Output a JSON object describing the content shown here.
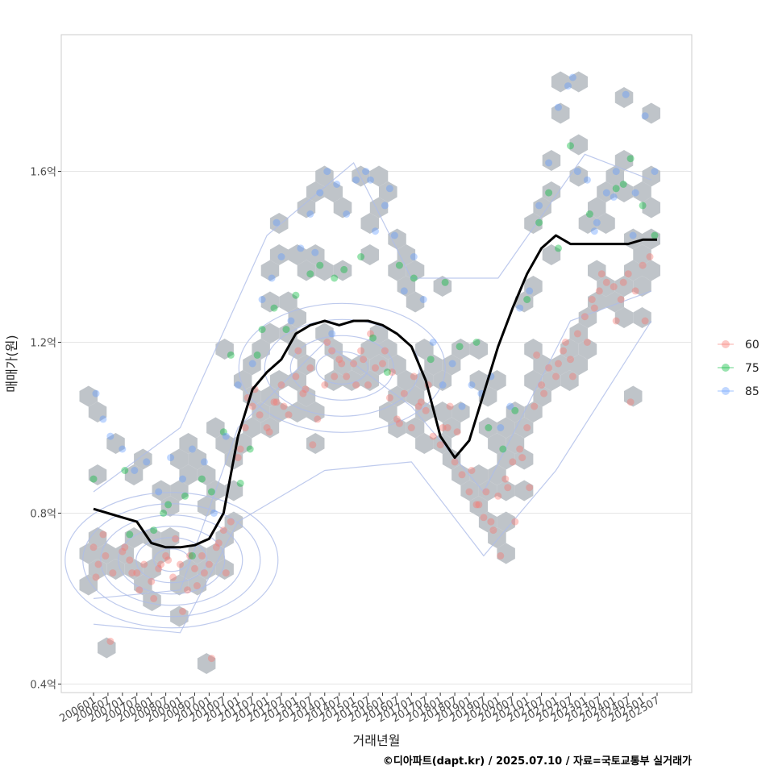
{
  "chart_data": {
    "type": "scatter",
    "title": "",
    "xlabel": "거래년월",
    "ylabel": "매매가(원)",
    "caption": "©디아파트(dapt.kr) / 2025.07.10 / 자료=국토교통부 실거래가",
    "x_ticks": [
      "200601",
      "200607",
      "200701",
      "200707",
      "200801",
      "200807",
      "200901",
      "200907",
      "201001",
      "201007",
      "201101",
      "201107",
      "201201",
      "201207",
      "201301",
      "201307",
      "201401",
      "201407",
      "201501",
      "201507",
      "201601",
      "201607",
      "201701",
      "201707",
      "201801",
      "201807",
      "201901",
      "201907",
      "202001",
      "202007",
      "202101",
      "202107",
      "202201",
      "202207",
      "202301",
      "202307",
      "202401",
      "202407",
      "202501",
      "202507"
    ],
    "y_ticks": [
      0.4,
      0.8,
      1.2,
      1.6
    ],
    "y_tick_labels": [
      "0.4억",
      "0.8억",
      "1.2억",
      "1.6억"
    ],
    "ylim": [
      0.38,
      1.92
    ],
    "grid": "horizontal",
    "legend_position": "right",
    "legend": [
      {
        "label": "60",
        "color": "#F8766D"
      },
      {
        "label": "75",
        "color": "#00BA38"
      },
      {
        "label": "85",
        "color": "#619CFF"
      }
    ],
    "hex_color": "#bfc4c9",
    "trend_line": {
      "color": "#000000",
      "x": [
        "2006-01",
        "2006-07",
        "2007-01",
        "2007-07",
        "2008-01",
        "2008-07",
        "2009-01",
        "2009-07",
        "2010-01",
        "2010-07",
        "2011-01",
        "2011-07",
        "2012-01",
        "2012-07",
        "2013-01",
        "2013-07",
        "2014-01",
        "2014-07",
        "2015-01",
        "2015-07",
        "2016-01",
        "2016-07",
        "2017-01",
        "2017-07",
        "2018-01",
        "2018-07",
        "2019-01",
        "2019-07",
        "2020-01",
        "2020-07",
        "2021-01",
        "2021-07",
        "2022-01",
        "2022-07",
        "2023-01",
        "2023-07",
        "2024-01",
        "2024-07",
        "2025-01",
        "2025-07"
      ],
      "y": [
        0.81,
        0.8,
        0.79,
        0.78,
        0.73,
        0.72,
        0.72,
        0.725,
        0.74,
        0.8,
        0.98,
        1.09,
        1.13,
        1.16,
        1.22,
        1.24,
        1.25,
        1.24,
        1.25,
        1.25,
        1.24,
        1.22,
        1.19,
        1.11,
        0.98,
        0.93,
        0.97,
        1.08,
        1.19,
        1.28,
        1.36,
        1.42,
        1.45,
        1.43,
        1.43,
        1.43,
        1.43,
        1.43,
        1.44,
        1.44
      ]
    },
    "series": [
      {
        "name": "60",
        "x": [
          "2006-01",
          "2006-03",
          "2006-06",
          "2006-09",
          "2007-01",
          "2007-04",
          "2007-07",
          "2007-10",
          "2008-01",
          "2008-04",
          "2008-07",
          "2008-10",
          "2009-01",
          "2009-04",
          "2009-07",
          "2009-10",
          "2010-01",
          "2010-04",
          "2010-07",
          "2010-10",
          "2011-01",
          "2011-04",
          "2011-07",
          "2011-10",
          "2012-01",
          "2012-04",
          "2012-07",
          "2012-10",
          "2013-01",
          "2013-04",
          "2013-07",
          "2013-10",
          "2014-01",
          "2014-04",
          "2014-07",
          "2014-10",
          "2015-01",
          "2015-04",
          "2015-07",
          "2015-10",
          "2016-01",
          "2016-04",
          "2016-07",
          "2016-10",
          "2017-01",
          "2017-04",
          "2017-07",
          "2017-10",
          "2018-01",
          "2018-04",
          "2018-07",
          "2018-10",
          "2019-01",
          "2019-04",
          "2019-07",
          "2019-10",
          "2020-01",
          "2020-04",
          "2020-07",
          "2020-10",
          "2021-01",
          "2021-04",
          "2021-07",
          "2021-10",
          "2022-01",
          "2022-04",
          "2022-07",
          "2022-10",
          "2023-01",
          "2023-04",
          "2023-07",
          "2023-10",
          "2024-01",
          "2024-04",
          "2024-07",
          "2024-10",
          "2025-01",
          "2025-04",
          "2006-02",
          "2006-08",
          "2007-02",
          "2007-08",
          "2008-02",
          "2008-08",
          "2009-02",
          "2009-08",
          "2010-02",
          "2010-08",
          "2011-02",
          "2011-08",
          "2012-02",
          "2012-08",
          "2013-02",
          "2013-08",
          "2014-02",
          "2014-08",
          "2015-02",
          "2015-08",
          "2016-02",
          "2016-08",
          "2017-02",
          "2017-08",
          "2018-02",
          "2018-08",
          "2019-02",
          "2019-08",
          "2020-02",
          "2020-08",
          "2021-02",
          "2021-08",
          "2022-02",
          "2022-08",
          "2023-02",
          "2023-08",
          "2024-02",
          "2024-08",
          "2025-02",
          "2006-05",
          "2007-05",
          "2008-05",
          "2009-05",
          "2010-05",
          "2019-05",
          "2019-11",
          "2020-05",
          "2020-11",
          "2008-11",
          "2009-11",
          "2011-05",
          "2012-05",
          "2013-05",
          "2014-05",
          "2015-05",
          "2016-05",
          "2017-05",
          "2018-05",
          "2021-05",
          "2022-05",
          "2023-05",
          "2024-05"
        ],
        "y": [
          0.72,
          0.68,
          0.7,
          0.66,
          0.71,
          0.69,
          0.66,
          0.68,
          0.64,
          0.67,
          0.7,
          0.65,
          0.68,
          0.62,
          0.67,
          0.7,
          0.68,
          0.72,
          0.76,
          0.78,
          0.93,
          1.0,
          1.05,
          1.03,
          1.0,
          1.06,
          1.1,
          1.03,
          1.12,
          1.08,
          1.14,
          1.02,
          1.1,
          1.18,
          1.16,
          1.12,
          1.15,
          1.18,
          1.1,
          1.14,
          1.15,
          1.07,
          1.02,
          1.08,
          1.0,
          1.05,
          1.04,
          0.98,
          0.96,
          1.0,
          0.92,
          0.89,
          0.85,
          0.82,
          0.79,
          0.78,
          0.84,
          0.88,
          0.92,
          0.95,
          1.0,
          1.05,
          1.1,
          1.14,
          1.12,
          1.18,
          1.16,
          1.22,
          1.26,
          1.3,
          1.32,
          1.34,
          1.33,
          1.3,
          1.36,
          1.32,
          1.38,
          1.4,
          0.65,
          0.5,
          0.72,
          0.62,
          0.6,
          0.69,
          0.57,
          0.63,
          0.46,
          0.66,
          0.95,
          1.09,
          0.99,
          1.05,
          1.18,
          0.96,
          1.2,
          1.15,
          1.1,
          1.22,
          1.18,
          1.01,
          1.12,
          1.1,
          1.0,
          0.99,
          0.9,
          0.85,
          0.7,
          0.78,
          0.86,
          1.08,
          1.15,
          1.12,
          1.2,
          1.36,
          1.25,
          1.06,
          1.25,
          0.75,
          0.66,
          0.68,
          0.7,
          0.73,
          0.82,
          0.76,
          0.86,
          0.93,
          0.74,
          0.66,
          1.07,
          1.06,
          1.09,
          1.12,
          1.16,
          1.13,
          1.06,
          1.05,
          1.17,
          1.2,
          1.28,
          1.34
        ]
      },
      {
        "name": "75",
        "x": [
          "2006-01",
          "2007-02",
          "2007-04",
          "2008-02",
          "2008-06",
          "2008-08",
          "2009-03",
          "2009-06",
          "2009-10",
          "2010-02",
          "2010-07",
          "2011-02",
          "2011-06",
          "2011-09",
          "2012-04",
          "2012-09",
          "2013-01",
          "2013-07",
          "2013-11",
          "2014-05",
          "2014-09",
          "2015-04",
          "2015-09",
          "2016-03",
          "2016-08",
          "2017-02",
          "2017-09",
          "2018-03",
          "2018-09",
          "2019-04",
          "2019-09",
          "2020-03",
          "2020-08",
          "2021-01",
          "2021-06",
          "2021-10",
          "2022-02",
          "2022-07",
          "2023-03",
          "2024-02",
          "2024-05",
          "2024-08",
          "2025-01",
          "2025-06",
          "2010-10",
          "2011-11"
        ],
        "y": [
          0.88,
          0.9,
          0.75,
          0.76,
          0.8,
          0.82,
          0.84,
          0.7,
          0.88,
          0.85,
          0.99,
          0.87,
          0.95,
          1.17,
          1.28,
          1.23,
          1.31,
          1.36,
          1.38,
          1.35,
          1.37,
          1.4,
          1.21,
          1.13,
          1.38,
          1.35,
          1.16,
          1.34,
          1.19,
          1.2,
          1.0,
          0.95,
          1.04,
          1.3,
          1.48,
          1.55,
          1.42,
          1.66,
          1.5,
          1.56,
          1.57,
          1.63,
          1.52,
          1.45,
          1.17,
          1.23
        ]
      },
      {
        "name": "85",
        "x": [
          "2006-02",
          "2006-05",
          "2006-08",
          "2007-01",
          "2007-06",
          "2007-11",
          "2008-04",
          "2008-09",
          "2009-02",
          "2009-06",
          "2009-11",
          "2010-03",
          "2010-08",
          "2011-01",
          "2011-07",
          "2011-11",
          "2012-03",
          "2012-07",
          "2012-11",
          "2013-03",
          "2013-07",
          "2013-11",
          "2014-02",
          "2014-06",
          "2014-10",
          "2015-02",
          "2015-06",
          "2015-10",
          "2016-02",
          "2016-06",
          "2016-10",
          "2017-02",
          "2017-06",
          "2017-10",
          "2018-02",
          "2018-06",
          "2018-10",
          "2019-02",
          "2019-06",
          "2019-10",
          "2020-02",
          "2020-06",
          "2020-10",
          "2021-02",
          "2021-06",
          "2021-10",
          "2022-02",
          "2022-06",
          "2022-10",
          "2023-02",
          "2023-06",
          "2023-10",
          "2024-02",
          "2024-06",
          "2024-10",
          "2025-02",
          "2025-06",
          "2022-08",
          "2023-05",
          "2024-01",
          "2024-09",
          "2012-05",
          "2013-09",
          "2015-08",
          "2016-04",
          "2014-04"
        ],
        "y": [
          1.08,
          1.02,
          0.98,
          0.95,
          0.9,
          0.92,
          0.85,
          0.93,
          0.88,
          0.95,
          0.92,
          0.8,
          0.98,
          1.1,
          1.15,
          1.3,
          1.35,
          1.4,
          1.25,
          1.42,
          1.5,
          1.55,
          1.6,
          1.57,
          1.5,
          1.58,
          1.6,
          1.46,
          1.52,
          1.45,
          1.32,
          1.4,
          1.3,
          1.2,
          1.1,
          1.15,
          1.05,
          1.1,
          1.08,
          1.12,
          1.0,
          1.05,
          1.28,
          1.32,
          1.52,
          1.62,
          1.75,
          1.8,
          1.6,
          1.58,
          1.48,
          1.55,
          1.6,
          1.78,
          1.55,
          1.73,
          1.6,
          1.82,
          1.46,
          1.54,
          1.45,
          1.48,
          1.41,
          1.58,
          1.56,
          1.22
        ]
      }
    ]
  }
}
